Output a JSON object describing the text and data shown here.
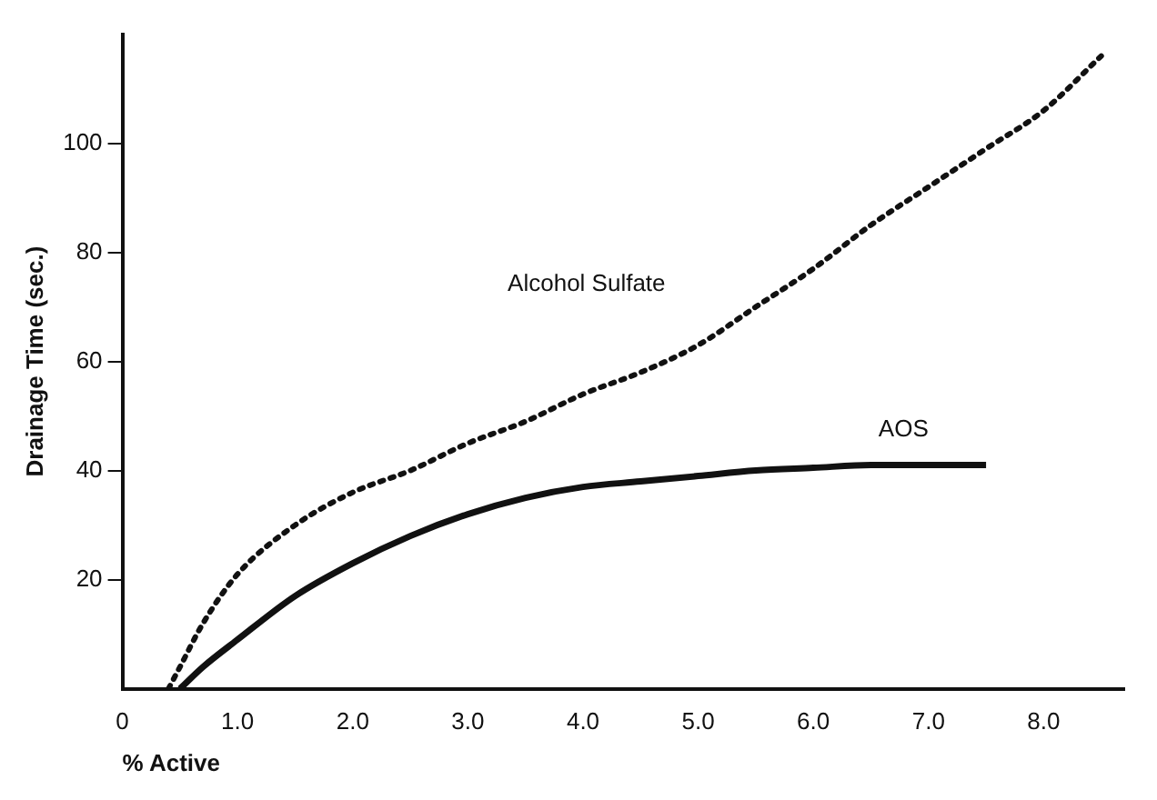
{
  "chart_data": {
    "type": "line",
    "xlabel": "% Active",
    "ylabel": "Drainage Time (sec.)",
    "marker": "none",
    "grid": false,
    "legend": false,
    "xlim": [
      0,
      8.7
    ],
    "ylim": [
      0,
      120
    ],
    "xticks": [
      0,
      {
        "value": 1,
        "label": "1.0"
      },
      {
        "value": 2,
        "label": "2.0"
      },
      {
        "value": 3,
        "label": "3.0"
      },
      {
        "value": 4,
        "label": "4.0"
      },
      {
        "value": 5,
        "label": "5.0"
      },
      {
        "value": 6,
        "label": "6.0"
      },
      {
        "value": 7,
        "label": "7.0"
      },
      {
        "value": 8,
        "label": "8.0"
      }
    ],
    "yticks": [
      20,
      40,
      60,
      80,
      100
    ],
    "series": [
      {
        "name": "Alcohol Sulfate",
        "color": "#111111",
        "line_style": "dotted",
        "x": [
          0.4,
          0.5,
          0.7,
          1.0,
          1.5,
          2.0,
          2.5,
          3.0,
          3.5,
          4.0,
          4.5,
          5.0,
          5.5,
          6.0,
          6.5,
          7.0,
          7.5,
          8.0,
          8.5
        ],
        "values": [
          0,
          4,
          12,
          21,
          30,
          36,
          40,
          45,
          49,
          54,
          58,
          63,
          70,
          77,
          85,
          92,
          99,
          106,
          116
        ]
      },
      {
        "name": "AOS",
        "color": "#111111",
        "line_style": "solid",
        "x": [
          0.5,
          0.7,
          1.0,
          1.5,
          2.0,
          2.5,
          3.0,
          3.5,
          4.0,
          4.5,
          5.0,
          5.5,
          6.0,
          6.5,
          7.0,
          7.5
        ],
        "values": [
          0,
          4,
          9,
          17,
          23,
          28,
          32,
          35,
          37,
          38,
          39,
          40,
          40.5,
          41,
          41,
          41
        ]
      }
    ]
  }
}
